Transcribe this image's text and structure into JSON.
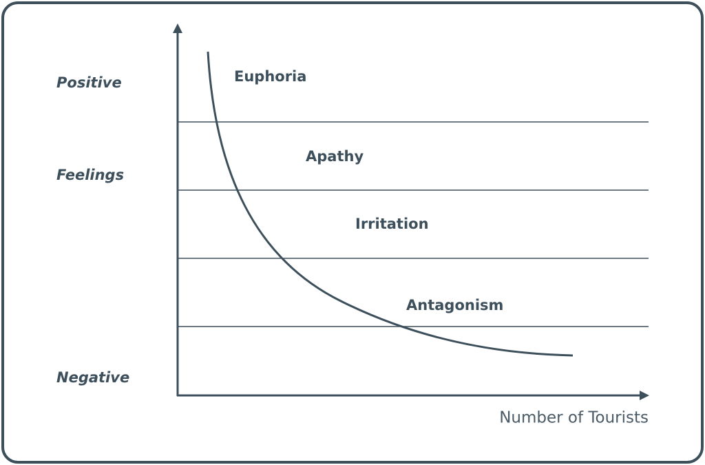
{
  "y_axis": {
    "labels": [
      "Positive",
      "Feelings",
      "Negative"
    ]
  },
  "x_axis": {
    "label": "Number of Tourists"
  },
  "zones": [
    {
      "label": "Euphoria"
    },
    {
      "label": "Apathy"
    },
    {
      "label": "Irritation"
    },
    {
      "label": "Antagonism"
    }
  ]
}
